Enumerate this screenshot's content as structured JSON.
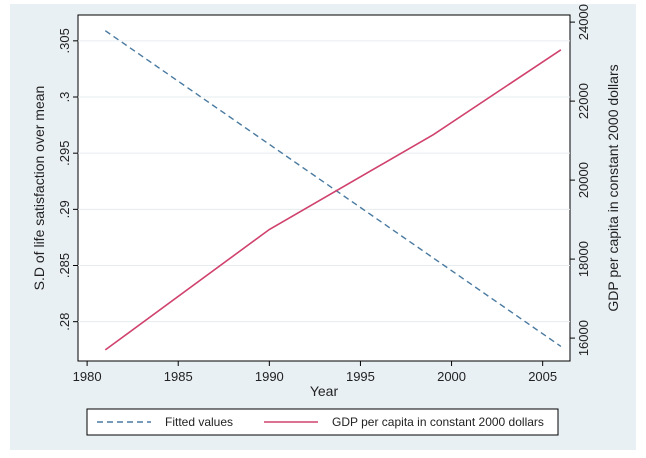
{
  "chart_data": {
    "type": "line",
    "xlabel": "Year",
    "ylabel_left": "S.D of life satisfaction over mean",
    "ylabel_right": "GDP per capita in constant 2000 dollars",
    "x_ticks": [
      "1980",
      "1985",
      "1990",
      "1995",
      "2000",
      "2005"
    ],
    "y_left_ticks": [
      ".28",
      ".285",
      ".29",
      ".295",
      ".3",
      ".305"
    ],
    "y_right_ticks": [
      "16000",
      "18000",
      "20000",
      "22000",
      "24000"
    ],
    "xlim": [
      1979.5,
      2006.5
    ],
    "ylim_left": [
      0.2765,
      0.3073
    ],
    "ylim_right": [
      15420,
      24180
    ],
    "grid": true,
    "legend_position": "bottom",
    "series": [
      {
        "name": "Fitted values",
        "axis": "left",
        "style": "dashed",
        "color": "#4a7aa0",
        "x": [
          1981,
          2006
        ],
        "y": [
          0.3059,
          0.2778
        ]
      },
      {
        "name": "GDP per capita in constant 2000 dollars",
        "axis": "right",
        "style": "solid",
        "color": "#d0426e",
        "x": [
          1981,
          1990,
          1999,
          2006
        ],
        "y": [
          15700,
          18750,
          21150,
          23300
        ]
      }
    ]
  }
}
